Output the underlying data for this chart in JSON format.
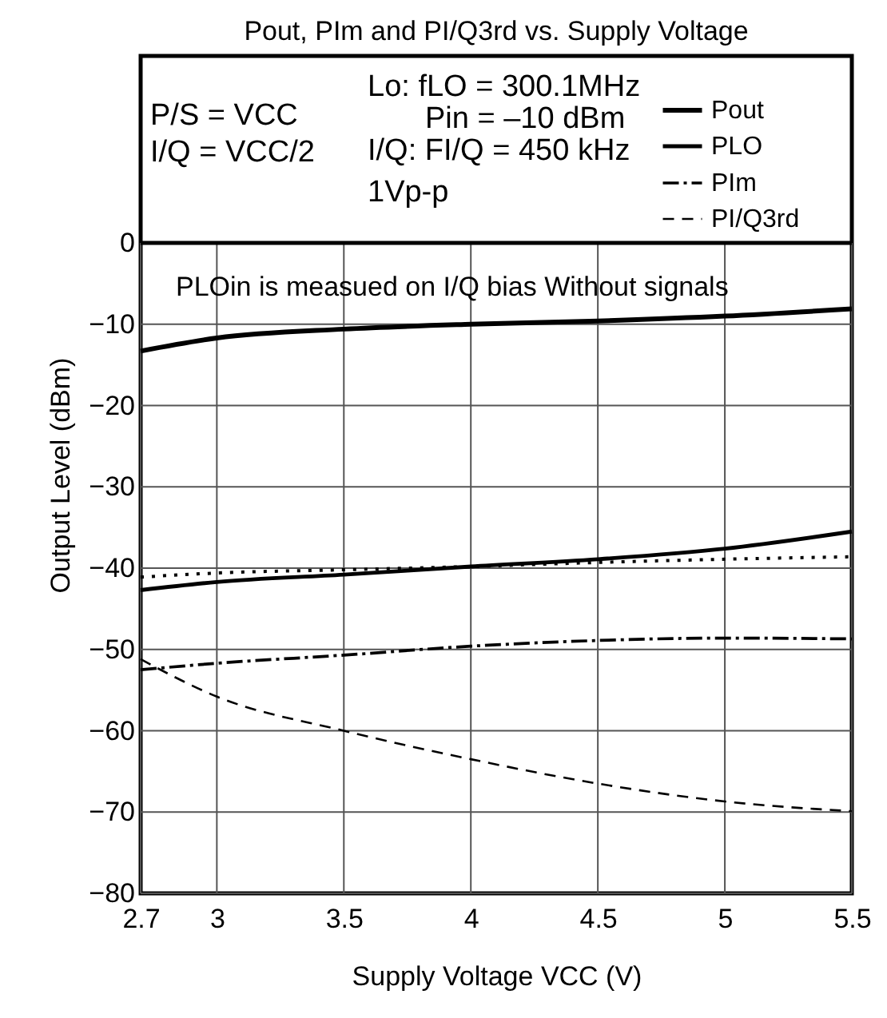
{
  "chart_data": {
    "type": "line",
    "title": "Pout, PIm and PI/Q3rd vs. Supply Voltage",
    "xlabel": "Supply Voltage VCC (V)",
    "ylabel": "Output Level (dBm)",
    "x": [
      2.7,
      3.0,
      3.5,
      4.0,
      4.5,
      5.0,
      5.5
    ],
    "series": [
      {
        "name": "Pout",
        "color": "#000000",
        "line_style": "solid",
        "values": [
          -13.3,
          -11.7,
          -10.6,
          -10.0,
          -9.6,
          -9.0,
          -8.1
        ]
      },
      {
        "name": "PLO",
        "color": "#000000",
        "line_style": "solid",
        "values": [
          -42.7,
          -41.7,
          -40.8,
          -39.8,
          -38.9,
          -37.6,
          -35.5
        ]
      },
      {
        "name": "PIm",
        "color": "#000000",
        "line_style": "dashdot",
        "values": [
          -52.5,
          -51.7,
          -50.7,
          -49.6,
          -48.9,
          -48.6,
          -48.7
        ]
      },
      {
        "name": "PI/Q3rd",
        "color": "#000000",
        "line_style": "dashed",
        "values": [
          -51.2,
          -55.8,
          -60.0,
          -63.5,
          -66.5,
          -68.7,
          -69.9
        ]
      },
      {
        "color": "#000000",
        "line_style": "dotted",
        "values": [
          -41.1,
          -40.6,
          -40.2,
          -39.8,
          -39.3,
          -38.9,
          -38.6
        ]
      }
    ],
    "xlim": [
      2.7,
      5.5
    ],
    "xticks": [
      2.7,
      3,
      3.5,
      4,
      4.5,
      5,
      5.5
    ],
    "ylim": [
      -80,
      23
    ],
    "yticks": [
      -80,
      -70,
      -60,
      -50,
      -40,
      -30,
      -20,
      -10,
      0
    ],
    "ref_lines": [
      {
        "axis": "y",
        "value": 0
      }
    ],
    "annotations": [
      "P/S = VCC",
      "I/Q = VCC/2",
      "Lo: fLO = 300.1MHz",
      "Pin = –10 dBm",
      "I/Q: FI/Q = 450 kHz",
      "1Vp-p",
      "PLOin is measued on I/Q bias Without signals"
    ],
    "grid": true,
    "legend": "top right"
  }
}
